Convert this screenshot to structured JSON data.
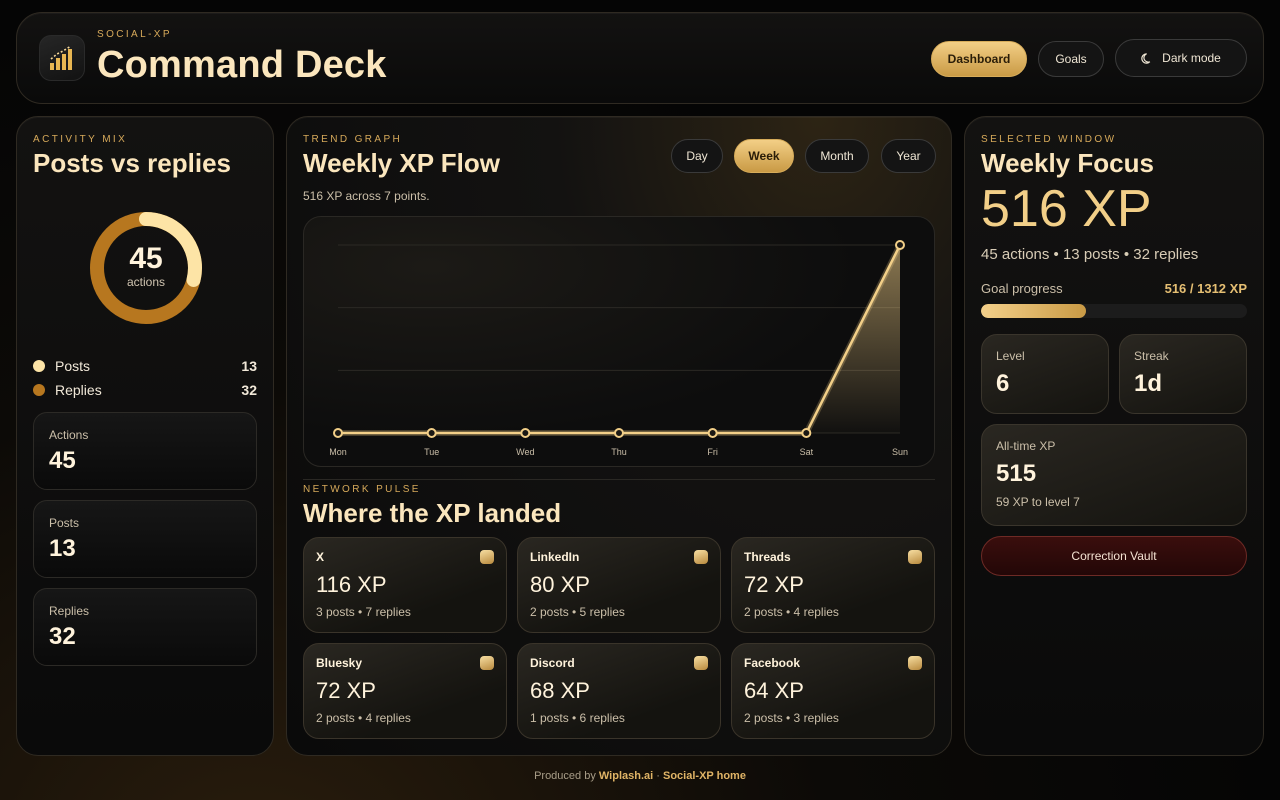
{
  "header": {
    "eyebrow": "SOCIAL-XP",
    "title": "Command Deck",
    "nav": {
      "dashboard": "Dashboard",
      "goals": "Goals",
      "dark_mode": "Dark mode"
    },
    "active_nav": "Dashboard"
  },
  "activity": {
    "eyebrow": "ACTIVITY MIX",
    "title": "Posts vs replies",
    "donut_total": "45",
    "donut_label": "actions",
    "legend": [
      {
        "label": "Posts",
        "value": "13",
        "color": "#fde4a6"
      },
      {
        "label": "Replies",
        "value": "32",
        "color": "#b7771f"
      }
    ],
    "cards": [
      {
        "label": "Actions",
        "value": "45"
      },
      {
        "label": "Posts",
        "value": "13"
      },
      {
        "label": "Replies",
        "value": "32"
      }
    ]
  },
  "trend": {
    "eyebrow": "TREND GRAPH",
    "title": "Weekly XP Flow",
    "subtitle": "516 XP across 7 points.",
    "ranges": [
      "Day",
      "Week",
      "Month",
      "Year"
    ],
    "active_range": "Week"
  },
  "chart_data": {
    "type": "area",
    "categories": [
      "Mon",
      "Tue",
      "Wed",
      "Thu",
      "Fri",
      "Sat",
      "Sun"
    ],
    "values": [
      0,
      0,
      0,
      0,
      0,
      0,
      516
    ],
    "title": "",
    "xlabel": "",
    "ylabel": "",
    "ylim": [
      0,
      516
    ],
    "grid": true,
    "color": "#f2cf88"
  },
  "pulse": {
    "eyebrow": "NETWORK PULSE",
    "title": "Where the XP landed",
    "networks": [
      {
        "name": "X",
        "xp": "116 XP",
        "meta": "3 posts • 7 replies"
      },
      {
        "name": "LinkedIn",
        "xp": "80 XP",
        "meta": "2 posts • 5 replies"
      },
      {
        "name": "Threads",
        "xp": "72 XP",
        "meta": "2 posts • 4 replies"
      },
      {
        "name": "Bluesky",
        "xp": "72 XP",
        "meta": "2 posts • 4 replies"
      },
      {
        "name": "Discord",
        "xp": "68 XP",
        "meta": "1 posts • 6 replies"
      },
      {
        "name": "Facebook",
        "xp": "64 XP",
        "meta": "2 posts • 3 replies"
      }
    ]
  },
  "focus": {
    "eyebrow": "SELECTED WINDOW",
    "title": "Weekly Focus",
    "xp": "516 XP",
    "summary": "45 actions • 13 posts • 32 replies",
    "goal_label": "Goal progress",
    "goal_value": "516 / 1312 XP",
    "goal_fraction": 0.393,
    "level_label": "Level",
    "level_value": "6",
    "streak_label": "Streak",
    "streak_value": "1d",
    "alltime_label": "All-time XP",
    "alltime_value": "515",
    "alltime_note": "59 XP to level 7",
    "vault_label": "Correction Vault"
  },
  "footer": {
    "produced_by": "Produced by",
    "wiplash": "Wiplash.ai",
    "sep": "·",
    "home": "Social-XP home"
  }
}
